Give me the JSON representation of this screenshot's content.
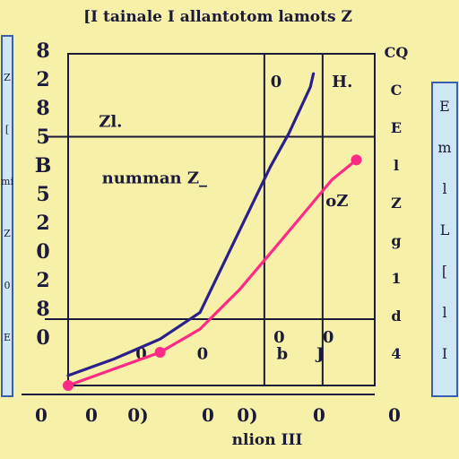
{
  "chart_data": {
    "type": "line",
    "title": "[I tainale I allantotom lamots Z",
    "xlabel": "nlion III",
    "ylabel": "",
    "x_ticks": [
      "0",
      "0",
      "0)",
      "0",
      "0)",
      "0",
      "0"
    ],
    "y_ticks": [
      "8",
      "2",
      "8",
      "5",
      "B",
      "5",
      "2",
      "0",
      "2",
      "8",
      "0"
    ],
    "ylim": [
      0,
      10
    ],
    "xlim": [
      0,
      10
    ],
    "grid": true,
    "annotations": [
      {
        "text": "0",
        "x": 6.6,
        "y": 9.0
      },
      {
        "text": "H.",
        "x": 8.6,
        "y": 9.0
      },
      {
        "text": "Zl.",
        "x": 1.0,
        "y": 7.8
      },
      {
        "text": "numman Z_",
        "x": 1.1,
        "y": 6.1
      },
      {
        "text": "oZ",
        "x": 8.4,
        "y": 5.4
      },
      {
        "text": "0",
        "x": 4.2,
        "y": 0.8
      },
      {
        "text": "0",
        "x": 2.2,
        "y": 0.8
      },
      {
        "text": "b",
        "x": 6.8,
        "y": 0.8
      },
      {
        "text": "0",
        "x": 6.7,
        "y": 1.3
      },
      {
        "text": "0",
        "x": 8.3,
        "y": 1.3
      },
      {
        "text": "J",
        "x": 8.1,
        "y": 0.8
      }
    ],
    "series": [
      {
        "color": "#2a1f8c",
        "x": [
          0.0,
          1.5,
          3.0,
          4.3,
          5.5,
          6.6,
          7.2,
          7.9,
          8.0
        ],
        "y": [
          0.3,
          0.8,
          1.4,
          2.2,
          4.5,
          6.6,
          7.6,
          9.0,
          9.4
        ]
      },
      {
        "color": "#ff2a86",
        "x": [
          0.0,
          1.5,
          3.0,
          4.3,
          5.6,
          6.7,
          7.7,
          8.6,
          9.4
        ],
        "y": [
          0.0,
          0.5,
          1.0,
          1.7,
          2.9,
          4.1,
          5.2,
          6.2,
          6.8
        ]
      }
    ]
  },
  "left_panel": {
    "words": [
      "Z",
      "[",
      "mi",
      "Z",
      "0",
      "E"
    ],
    "border_color": "#3a5eb0"
  },
  "right_panel": {
    "words": [
      "E",
      "m",
      "l",
      "L",
      "[",
      "l",
      "I"
    ],
    "border_color": "#3a5eb0"
  },
  "right_axis_text": [
    "CQ",
    "C",
    "E",
    "l",
    "Z",
    "g",
    "1",
    "d",
    "4"
  ],
  "colors": {
    "background": "#f6f0a8",
    "panel": "#cfe6f5",
    "axis": "#1c1a3a"
  }
}
